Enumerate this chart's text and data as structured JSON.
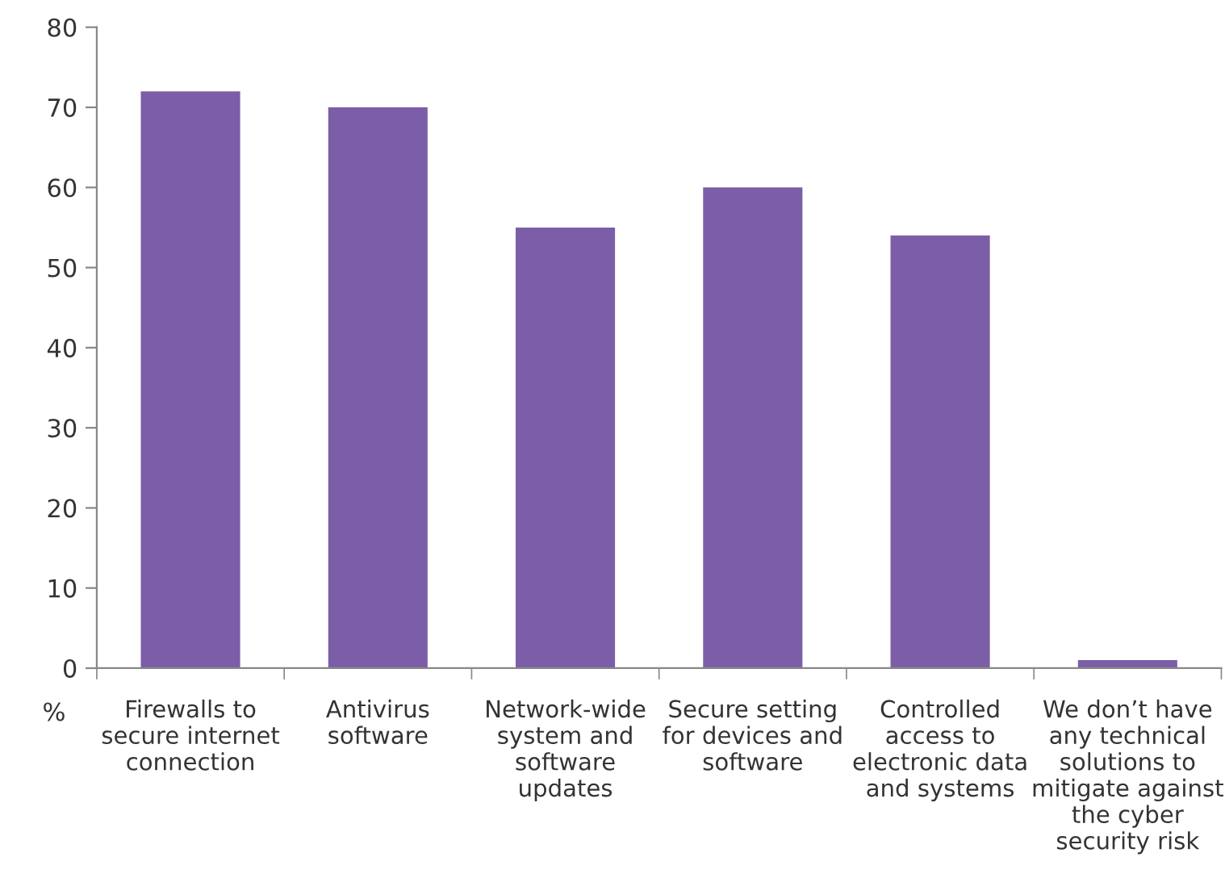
{
  "chart_data": {
    "type": "bar",
    "ylabel": "%",
    "categories": [
      "Firewalls to\nsecure internet\nconnection",
      "Antivirus\nsoftware",
      "Network-wide\nsystem and\nsoftware\nupdates",
      "Secure setting\nfor devices and\nsoftware",
      "Controlled\naccess to\nelectronic data\nand systems",
      "We don’t have\nany technical\nsolutions to\nmitigate against\nthe cyber\nsecurity risk"
    ],
    "values": [
      72,
      70,
      55,
      60,
      54,
      1
    ],
    "color": "#7b5ea7",
    "ylim": [
      0,
      80
    ],
    "yticks": [
      0,
      10,
      20,
      30,
      40,
      50,
      60,
      70,
      80
    ],
    "grid": false
  }
}
